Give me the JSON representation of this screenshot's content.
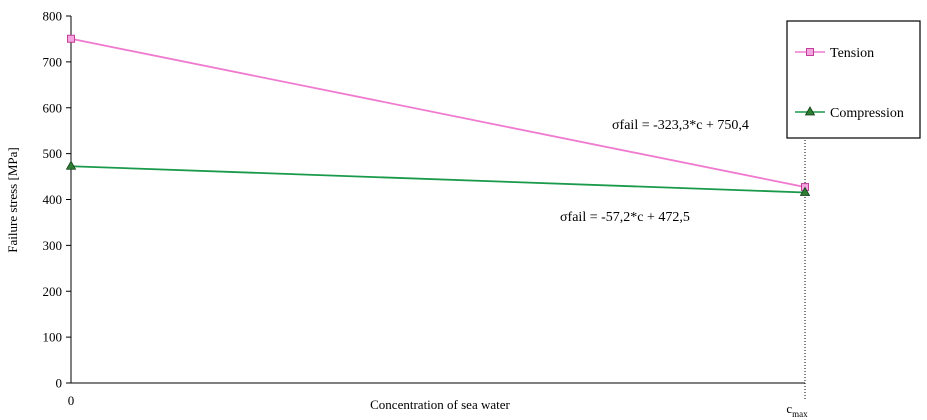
{
  "chart_data": {
    "type": "line",
    "x_ticks": [
      "0",
      "c"
    ],
    "x_tick_subscript": "max",
    "xlabel": "Concentration of sea water",
    "ylabel": "Failure stress [MPa]",
    "ylim": [
      0,
      800
    ],
    "y_ticks": [
      0,
      100,
      200,
      300,
      400,
      500,
      600,
      700,
      800
    ],
    "grid": false,
    "legend_position": "top-right",
    "series": [
      {
        "name": "Tension",
        "marker": "square",
        "color": "#f07ad0",
        "marker_fill": "#f5a6e0",
        "x": [
          0,
          1
        ],
        "values": [
          750.4,
          427.1
        ]
      },
      {
        "name": "Compression",
        "marker": "triangle",
        "color": "#1a9a4a",
        "marker_fill": "#2e7d32",
        "x": [
          0,
          1
        ],
        "values": [
          472.5,
          415.3
        ]
      }
    ],
    "annotations": [
      {
        "text": "σfail = -323,3*c + 750,4"
      },
      {
        "text": "σfail = -57,2*c + 472,5"
      }
    ]
  }
}
